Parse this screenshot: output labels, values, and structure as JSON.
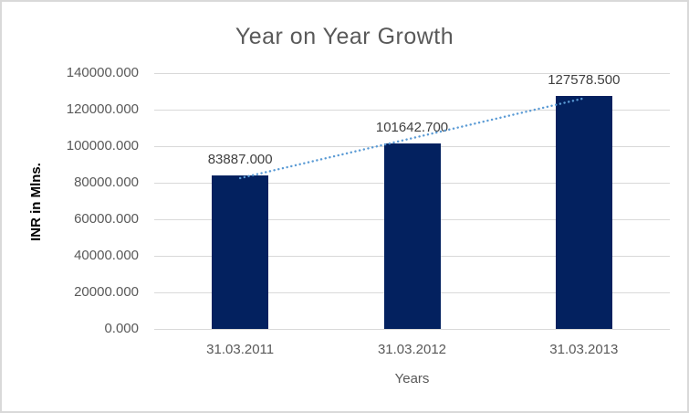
{
  "chart_data": {
    "type": "bar",
    "title": "Year on Year Growth",
    "xlabel": "Years",
    "ylabel": "INR in Mlns.",
    "categories": [
      "31.03.2011",
      "31.03.2012",
      "31.03.2013"
    ],
    "values": [
      83887.0,
      101642.7,
      127578.5
    ],
    "data_labels": [
      "83887.000",
      "101642.700",
      "127578.500"
    ],
    "ytick_values": [
      0,
      20000,
      40000,
      60000,
      80000,
      100000,
      120000,
      140000
    ],
    "ytick_labels": [
      "0.000",
      "20000.000",
      "40000.000",
      "60000.000",
      "80000.000",
      "100000.000",
      "120000.000",
      "140000.000"
    ],
    "ylim": [
      0,
      140000
    ],
    "grid": true,
    "legend": false,
    "trendline": {
      "type": "linear",
      "style": "dotted"
    },
    "colors": {
      "bar": "#03215f",
      "trendline": "#5b9bd5",
      "gridline": "#d9d9d9",
      "border": "#d9d9d9",
      "background": "#ffffff",
      "title_text": "#595959",
      "tick_text": "#595959",
      "data_label_text": "#404040",
      "x_axis_title_text": "#595959",
      "y_axis_title_text": "#000000"
    }
  }
}
